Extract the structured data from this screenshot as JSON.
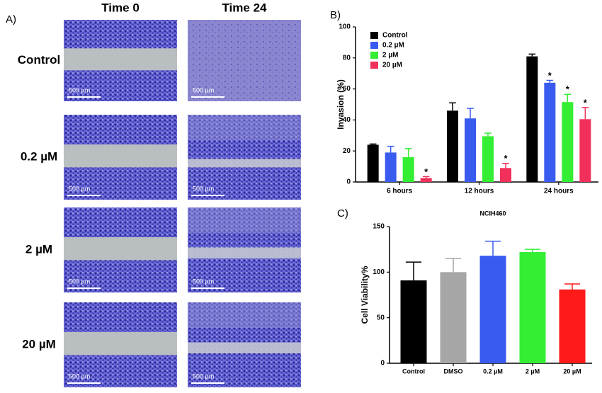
{
  "panel_labels": [
    "A)",
    "B)",
    "C)"
  ],
  "micrographs": {
    "columns": [
      "Time 0",
      "Time 24"
    ],
    "rows": [
      "Control",
      "0.2 µM",
      "2 µM",
      "20 µM"
    ],
    "scale_bar": "500 µm"
  },
  "chart_data": [
    {
      "type": "bar",
      "ylabel": "Invasion (%)",
      "categories": [
        "6 hours",
        "12 hours",
        "24 hours"
      ],
      "series": [
        {
          "name": "Control",
          "color": "#000000",
          "values": [
            24,
            46,
            81
          ],
          "errors": [
            0.5,
            5,
            1.5
          ],
          "annotations": [
            null,
            null,
            null
          ]
        },
        {
          "name": "0.2 µM",
          "color": "#3a5bef",
          "values": [
            19,
            41,
            64
          ],
          "errors": [
            4,
            6.5,
            1.5
          ],
          "annotations": [
            null,
            null,
            "*"
          ]
        },
        {
          "name": "2 µM",
          "color": "#33ee33",
          "values": [
            16,
            29.5,
            51.5
          ],
          "errors": [
            5.5,
            2,
            5
          ],
          "annotations": [
            null,
            null,
            "*"
          ]
        },
        {
          "name": "20 µM",
          "color": "#f0305a",
          "values": [
            2.5,
            9,
            40.5
          ],
          "errors": [
            1,
            3,
            7.5
          ],
          "annotations": [
            "*",
            "*",
            "*"
          ]
        }
      ],
      "ylim": [
        0,
        100
      ],
      "yticks": [
        0,
        20,
        40,
        60,
        80,
        100
      ],
      "legend": "upper left"
    },
    {
      "type": "bar",
      "title": "NCIH460",
      "ylabel": "Cell Viability%",
      "categories": [
        "Control",
        "DMSO",
        "0.2 µM",
        "2 µM",
        "20 µM"
      ],
      "values": [
        91,
        100,
        118,
        122,
        81
      ],
      "errors": [
        20,
        15,
        16,
        3,
        6
      ],
      "colors": [
        "#000000",
        "#a6a6a6",
        "#3a5bef",
        "#33ee33",
        "#ff1a1a"
      ],
      "ylim": [
        0,
        150
      ],
      "yticks": [
        0,
        50,
        100,
        150
      ]
    }
  ]
}
